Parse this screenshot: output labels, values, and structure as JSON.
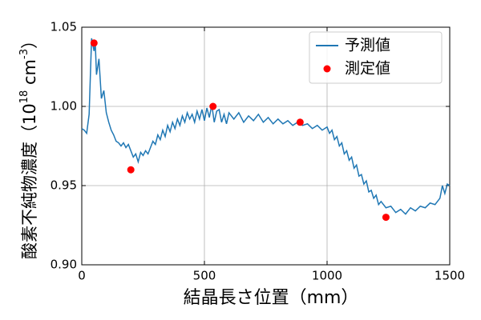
{
  "chart_data": {
    "type": "line",
    "xlabel": "結晶長さ位置（mm）",
    "ylabel": [
      "酸素不純物濃度（10",
      "18",
      " cm",
      "-3",
      "）"
    ],
    "xlim": [
      0,
      1500
    ],
    "xticks": [
      0,
      500,
      1000,
      1500
    ],
    "ylim": [
      0.9,
      1.05
    ],
    "yticks": [
      {
        "value": 0.9,
        "label": "0.90"
      },
      0.95,
      {
        "value": 1.0,
        "label": "1.00"
      },
      1.05
    ],
    "grid": true,
    "legend": "upper right",
    "series": [
      {
        "name": "予測値",
        "type": "line",
        "color": "#1f77b4",
        "x": [
          0,
          10,
          20,
          30,
          40,
          50,
          55,
          60,
          70,
          80,
          90,
          100,
          110,
          120,
          130,
          140,
          150,
          160,
          170,
          180,
          190,
          200,
          210,
          220,
          230,
          240,
          250,
          260,
          270,
          280,
          290,
          300,
          310,
          320,
          330,
          340,
          350,
          360,
          370,
          380,
          390,
          400,
          410,
          420,
          430,
          440,
          450,
          460,
          470,
          480,
          490,
          500,
          510,
          520,
          530,
          540,
          550,
          560,
          570,
          580,
          590,
          600,
          620,
          640,
          660,
          680,
          700,
          720,
          740,
          760,
          780,
          800,
          820,
          840,
          860,
          880,
          900,
          920,
          940,
          960,
          980,
          1000,
          1010,
          1020,
          1030,
          1040,
          1050,
          1060,
          1070,
          1080,
          1090,
          1100,
          1110,
          1120,
          1130,
          1140,
          1150,
          1160,
          1170,
          1180,
          1190,
          1200,
          1210,
          1220,
          1240,
          1260,
          1280,
          1300,
          1320,
          1340,
          1360,
          1380,
          1400,
          1420,
          1440,
          1460,
          1470,
          1480,
          1490,
          1500
        ],
        "values": [
          0.986,
          0.985,
          0.983,
          0.995,
          1.043,
          1.035,
          1.04,
          1.02,
          1.03,
          1.005,
          1.01,
          0.996,
          0.99,
          0.985,
          0.982,
          0.978,
          0.977,
          0.975,
          0.977,
          0.974,
          0.976,
          0.972,
          0.968,
          0.97,
          0.965,
          0.971,
          0.969,
          0.972,
          0.97,
          0.974,
          0.978,
          0.976,
          0.982,
          0.979,
          0.985,
          0.981,
          0.988,
          0.984,
          0.99,
          0.986,
          0.992,
          0.988,
          0.994,
          0.99,
          0.996,
          0.992,
          0.995,
          0.99,
          0.997,
          0.992,
          0.998,
          0.991,
          0.999,
          0.993,
          1.001,
          0.99,
          0.997,
          0.998,
          0.99,
          0.995,
          0.989,
          0.996,
          0.992,
          0.996,
          0.99,
          0.994,
          0.991,
          0.995,
          0.99,
          0.993,
          0.989,
          0.992,
          0.989,
          0.991,
          0.988,
          0.99,
          0.988,
          0.989,
          0.986,
          0.988,
          0.985,
          0.987,
          0.983,
          0.985,
          0.979,
          0.981,
          0.975,
          0.977,
          0.97,
          0.972,
          0.966,
          0.968,
          0.961,
          0.963,
          0.956,
          0.957,
          0.951,
          0.953,
          0.946,
          0.947,
          0.942,
          0.944,
          0.938,
          0.94,
          0.936,
          0.937,
          0.933,
          0.935,
          0.932,
          0.936,
          0.934,
          0.937,
          0.936,
          0.939,
          0.938,
          0.942,
          0.95,
          0.945,
          0.951,
          0.95
        ]
      },
      {
        "name": "測定値",
        "type": "scatter",
        "color": "#ff0000",
        "x": [
          50,
          200,
          535,
          890,
          1240
        ],
        "values": [
          1.04,
          0.96,
          1.0,
          0.99,
          0.93
        ]
      }
    ]
  }
}
